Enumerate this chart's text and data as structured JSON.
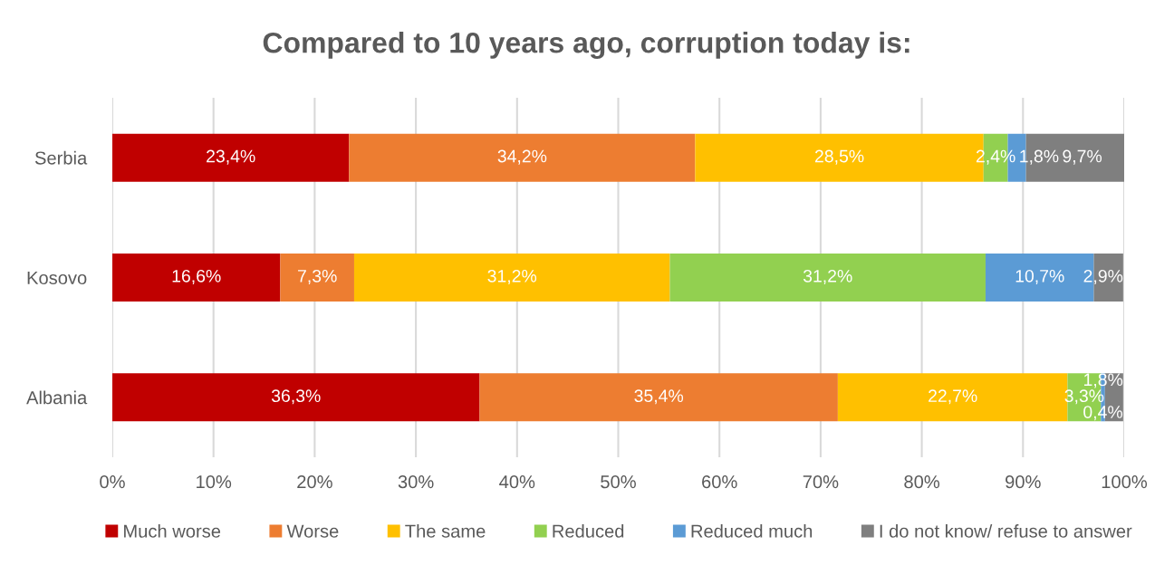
{
  "chart_data": {
    "type": "bar",
    "orientation": "horizontal",
    "stacked": true,
    "title": "Compared to 10 years ago, corruption today is:",
    "categories": [
      "Serbia",
      "Kosovo",
      "Albania"
    ],
    "series": [
      {
        "name": "Much worse",
        "color": "#c00000",
        "values": [
          23.4,
          16.6,
          36.3
        ],
        "value_labels": [
          "23,4%",
          "16,6%",
          "36,3%"
        ]
      },
      {
        "name": "Worse",
        "color": "#ed7d31",
        "values": [
          34.2,
          7.3,
          35.4
        ],
        "value_labels": [
          "34,2%",
          "7,3%",
          "35,4%"
        ]
      },
      {
        "name": "The same",
        "color": "#ffc000",
        "values": [
          28.5,
          31.2,
          22.7
        ],
        "value_labels": [
          "28,5%",
          "31,2%",
          "22,7%"
        ]
      },
      {
        "name": "Reduced",
        "color": "#92d050",
        "values": [
          2.4,
          31.2,
          3.3
        ],
        "value_labels": [
          "2,4%",
          "31,2%",
          "3,3%"
        ]
      },
      {
        "name": "Reduced much",
        "color": "#5b9bd5",
        "values": [
          1.8,
          10.7,
          0.4
        ],
        "value_labels": [
          "1,8%",
          "10,7%",
          "0,4%"
        ]
      },
      {
        "name": "I do not know/ refuse to answer",
        "color": "#7f7f7f",
        "values": [
          9.7,
          2.9,
          1.8
        ],
        "value_labels": [
          "9,7%",
          "2,9%",
          "1,8%"
        ]
      }
    ],
    "xlim": [
      0,
      100
    ],
    "xticks": [
      {
        "value": 0,
        "label": "0%"
      },
      {
        "value": 10,
        "label": "10%"
      },
      {
        "value": 20,
        "label": "20%"
      },
      {
        "value": 30,
        "label": "30%"
      },
      {
        "value": 40,
        "label": "40%"
      },
      {
        "value": 50,
        "label": "50%"
      },
      {
        "value": 60,
        "label": "60%"
      },
      {
        "value": 70,
        "label": "70%"
      },
      {
        "value": 80,
        "label": "80%"
      },
      {
        "value": 90,
        "label": "90%"
      },
      {
        "value": 100,
        "label": "100%"
      }
    ],
    "grid": "x",
    "legend": "bottom"
  }
}
